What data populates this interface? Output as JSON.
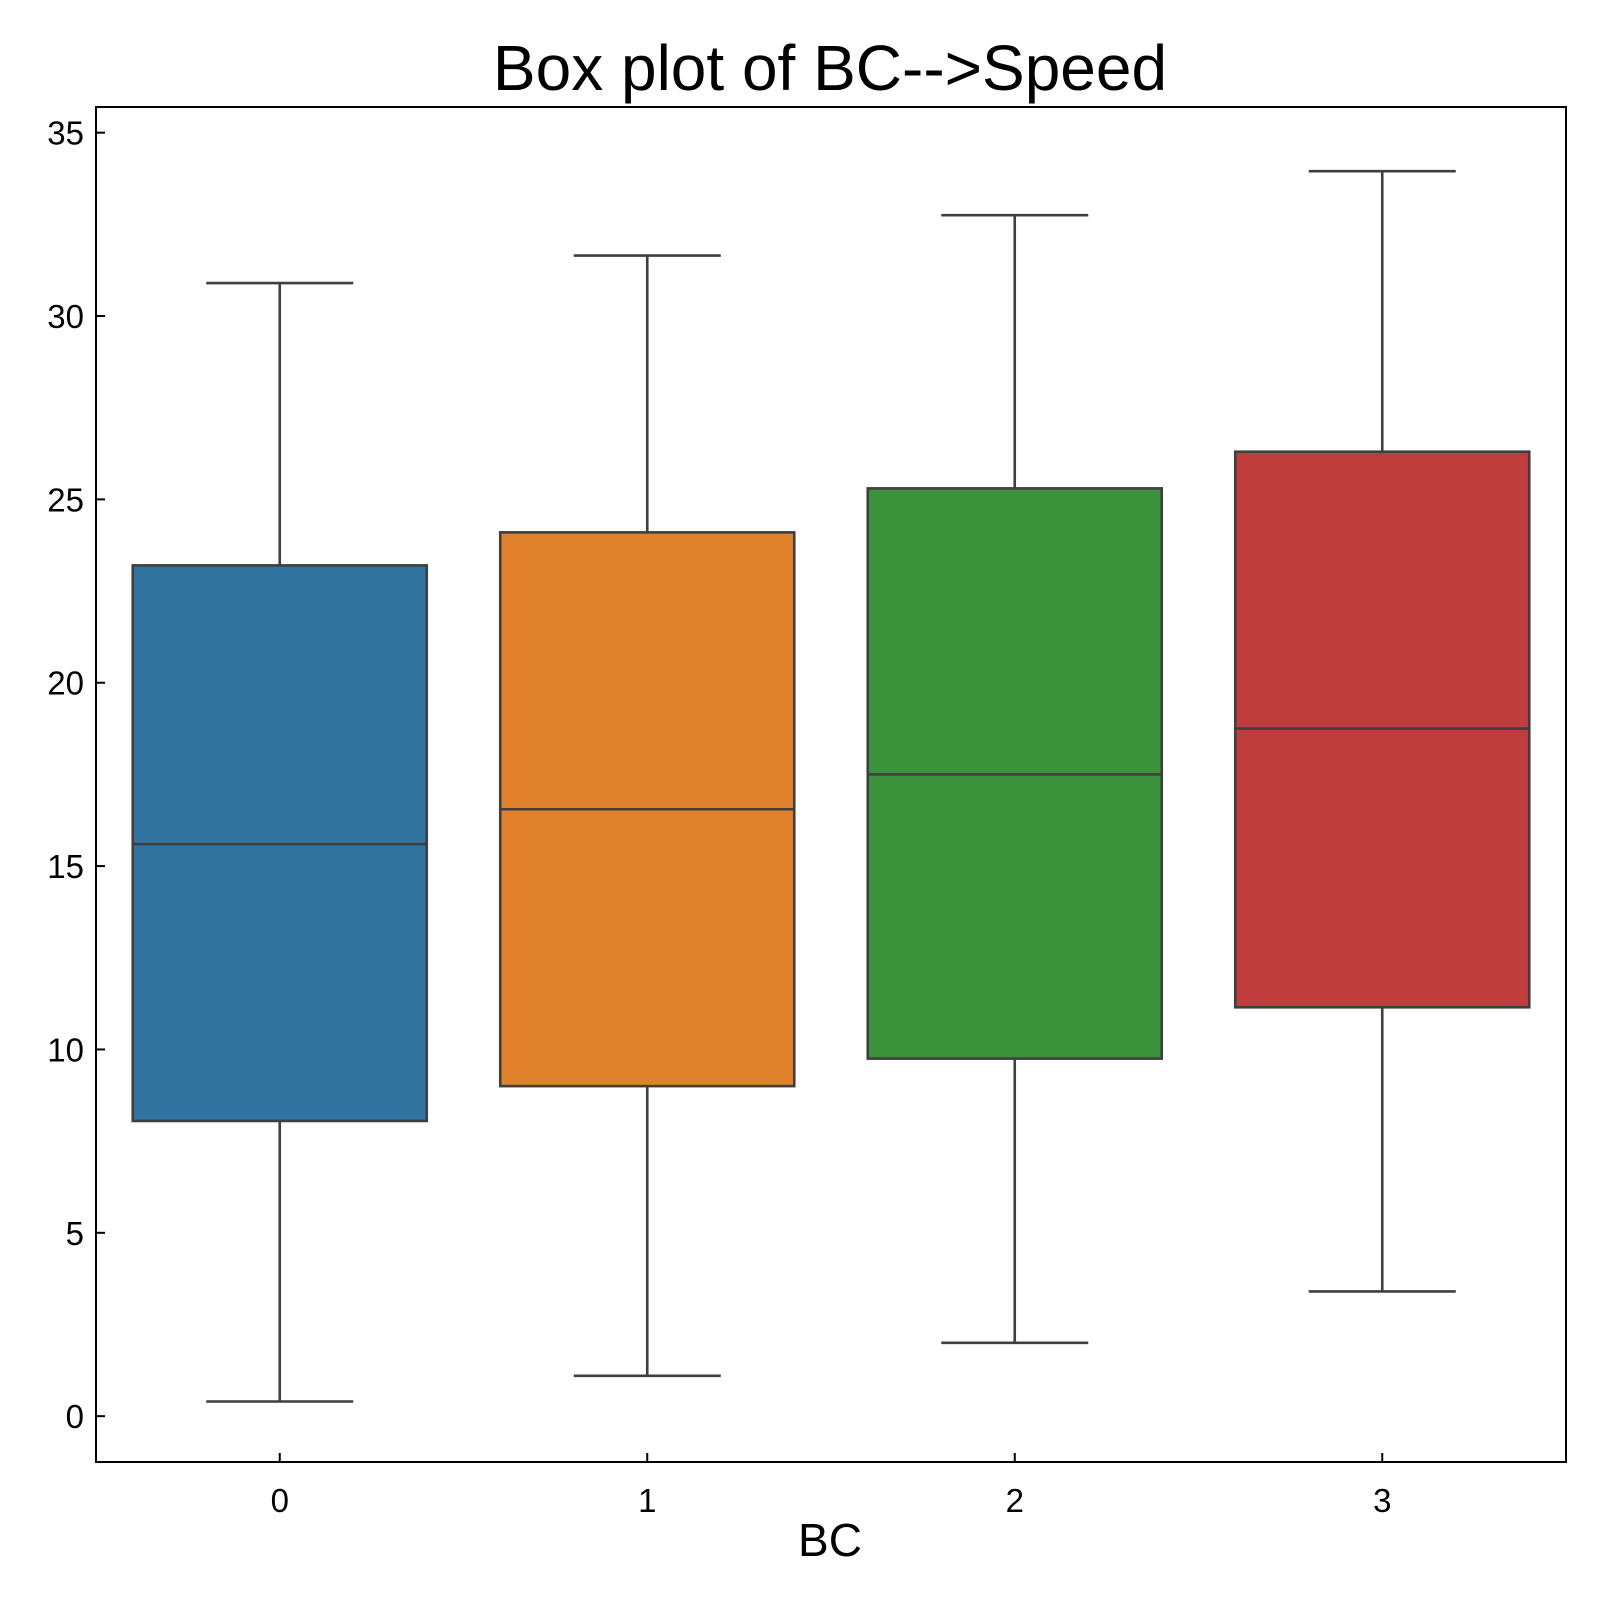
{
  "chart_data": {
    "type": "box",
    "title": "Box plot of BC-->Speed",
    "xlabel": "BC",
    "ylabel": "",
    "categories": [
      "0",
      "1",
      "2",
      "3"
    ],
    "yticks": [
      "0",
      "5",
      "10",
      "15",
      "20",
      "25",
      "30",
      "35"
    ],
    "ylim": [
      -1.25,
      35.7
    ],
    "grid": false,
    "boxes": [
      {
        "category": "0",
        "whisker_low": 0.4,
        "q1": 8.05,
        "median": 15.6,
        "q3": 23.2,
        "whisker_high": 30.9,
        "color": "#3274a1"
      },
      {
        "category": "1",
        "whisker_low": 1.1,
        "q1": 9.0,
        "median": 16.55,
        "q3": 24.1,
        "whisker_high": 31.65,
        "color": "#e1812c"
      },
      {
        "category": "2",
        "whisker_low": 2.0,
        "q1": 9.75,
        "median": 17.5,
        "q3": 25.3,
        "whisker_high": 32.75,
        "color": "#3a923a"
      },
      {
        "category": "3",
        "whisker_low": 3.4,
        "q1": 11.15,
        "median": 18.75,
        "q3": 26.3,
        "whisker_high": 33.95,
        "color": "#c03d3e"
      }
    ]
  }
}
